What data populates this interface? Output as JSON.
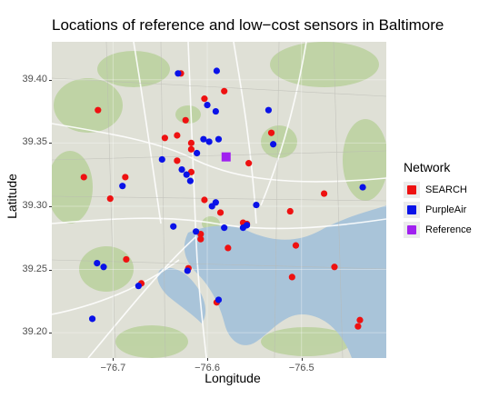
{
  "chart_data": {
    "type": "scatter",
    "title": "Locations of reference and low−cost sensors in Baltimore",
    "xlabel": "Longitude",
    "ylabel": "Latitude",
    "xlim": [
      -76.765,
      -76.41
    ],
    "ylim": [
      39.18,
      39.43
    ],
    "x_ticks": [
      -76.7,
      -76.6,
      -76.5
    ],
    "x_tick_labels": [
      "−76.7",
      "−76.6",
      "−76.5"
    ],
    "y_ticks": [
      39.2,
      39.25,
      39.3,
      39.35,
      39.4
    ],
    "y_tick_labels": [
      "39.20",
      "39.25",
      "39.30",
      "39.35",
      "39.40"
    ],
    "background": "street-map basemap of Baltimore",
    "legend": {
      "title": "Network",
      "position": "right",
      "entries": [
        {
          "label": "SEARCH",
          "color": "#ee1111"
        },
        {
          "label": "PurpleAir",
          "color": "#0a12e8"
        },
        {
          "label": "Reference",
          "color": "#a020f0"
        }
      ]
    },
    "series": [
      {
        "name": "SEARCH",
        "color": "#ee1111",
        "marker": "circle",
        "points": [
          [
            -76.716,
            39.376
          ],
          [
            -76.731,
            39.323
          ],
          [
            -76.703,
            39.306
          ],
          [
            -76.687,
            39.323
          ],
          [
            -76.686,
            39.258
          ],
          [
            -76.67,
            39.239
          ],
          [
            -76.628,
            39.405
          ],
          [
            -76.603,
            39.385
          ],
          [
            -76.582,
            39.391
          ],
          [
            -76.623,
            39.368
          ],
          [
            -76.645,
            39.354
          ],
          [
            -76.632,
            39.356
          ],
          [
            -76.617,
            39.345
          ],
          [
            -76.617,
            39.35
          ],
          [
            -76.632,
            39.336
          ],
          [
            -76.617,
            39.327
          ],
          [
            -76.603,
            39.305
          ],
          [
            -76.607,
            39.278
          ],
          [
            -76.607,
            39.274
          ],
          [
            -76.62,
            39.251
          ],
          [
            -76.586,
            39.295
          ],
          [
            -76.558,
            39.286
          ],
          [
            -76.562,
            39.287
          ],
          [
            -76.556,
            39.334
          ],
          [
            -76.578,
            39.267
          ],
          [
            -76.59,
            39.224
          ],
          [
            -76.532,
            39.358
          ],
          [
            -76.512,
            39.296
          ],
          [
            -76.506,
            39.269
          ],
          [
            -76.51,
            39.244
          ],
          [
            -76.476,
            39.31
          ],
          [
            -76.465,
            39.252
          ],
          [
            -76.44,
            39.205
          ],
          [
            -76.438,
            39.21
          ]
        ]
      },
      {
        "name": "PurpleAir",
        "color": "#0a12e8",
        "marker": "circle",
        "points": [
          [
            -76.769,
            39.273
          ],
          [
            -76.722,
            39.211
          ],
          [
            -76.717,
            39.255
          ],
          [
            -76.71,
            39.252
          ],
          [
            -76.69,
            39.316
          ],
          [
            -76.673,
            39.237
          ],
          [
            -76.631,
            39.405
          ],
          [
            -76.59,
            39.407
          ],
          [
            -76.6,
            39.38
          ],
          [
            -76.591,
            39.375
          ],
          [
            -76.604,
            39.353
          ],
          [
            -76.598,
            39.351
          ],
          [
            -76.588,
            39.353
          ],
          [
            -76.648,
            39.337
          ],
          [
            -76.627,
            39.329
          ],
          [
            -76.622,
            39.325
          ],
          [
            -76.618,
            39.32
          ],
          [
            -76.611,
            39.342
          ],
          [
            -76.591,
            39.303
          ],
          [
            -76.582,
            39.283
          ],
          [
            -76.562,
            39.283
          ],
          [
            -76.558,
            39.285
          ],
          [
            -76.548,
            39.301
          ],
          [
            -76.535,
            39.376
          ],
          [
            -76.53,
            39.349
          ],
          [
            -76.612,
            39.28
          ],
          [
            -76.636,
            39.284
          ],
          [
            -76.595,
            39.3
          ],
          [
            -76.621,
            39.249
          ],
          [
            -76.588,
            39.226
          ],
          [
            -76.435,
            39.315
          ]
        ]
      },
      {
        "name": "Reference",
        "color": "#a020f0",
        "marker": "square",
        "points": [
          [
            -76.58,
            39.339
          ]
        ]
      }
    ]
  }
}
